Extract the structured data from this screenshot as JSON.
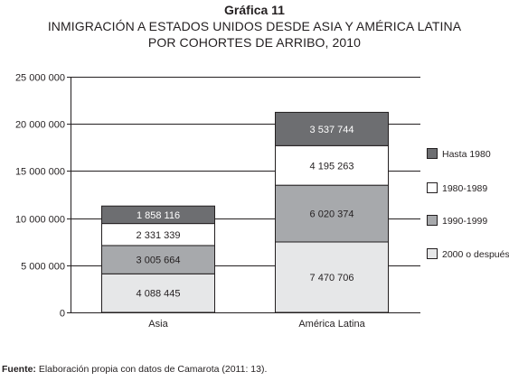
{
  "chart_number": "Gráfica 11",
  "title_line1": "INMIGRACIÓN A ESTADOS UNIDOS DESDE ASIA Y AMÉRICA LATINA",
  "title_line2": "POR COHORTES DE ARRIBO, 2010",
  "source_label": "Fuente:",
  "source_text": " Elaboración propia con datos de Camarota (2011: 13).",
  "colors": {
    "Hasta 1980": "#6d6e71",
    "1980-1989": "#ffffff",
    "1990-1999": "#a7a9ac",
    "2000 o después": "#e6e7e8"
  },
  "chart_data": {
    "type": "bar",
    "stacked": true,
    "categories": [
      "Asia",
      "América Latina"
    ],
    "series": [
      {
        "name": "2000 o después",
        "values": [
          4088445,
          7470706
        ],
        "labels": [
          "4 088 445",
          "7 470 706"
        ]
      },
      {
        "name": "1990-1999",
        "values": [
          3005664,
          6020374
        ],
        "labels": [
          "3 005 664",
          "6 020 374"
        ]
      },
      {
        "name": "1980-1989",
        "values": [
          2331339,
          4195263
        ],
        "labels": [
          "2 331 339",
          "4 195 263"
        ]
      },
      {
        "name": "Hasta 1980",
        "values": [
          1858116,
          3537744
        ],
        "labels": [
          "1 858 116",
          "3 537 744"
        ]
      }
    ],
    "legend_order": [
      "Hasta 1980",
      "1980-1989",
      "1990-1999",
      "2000 o después"
    ],
    "ylim": [
      0,
      25000000
    ],
    "yticks": [
      0,
      5000000,
      10000000,
      15000000,
      20000000,
      25000000
    ],
    "ytick_labels": [
      "0",
      "5 000 000",
      "10 000 000",
      "15 000 000",
      "20 000 000",
      "25 000 000"
    ],
    "grid": true,
    "legend_position": "right"
  }
}
